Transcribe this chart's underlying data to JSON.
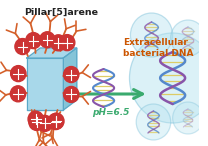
{
  "bg_color": "#ffffff",
  "pillar_color": "#a8d8ea",
  "pillar_color2": "#85c4d8",
  "pillar_edge_color": "#5aa8c8",
  "arm_color": "#d4602a",
  "node_color": "#cc3333",
  "dna_color1": "#5588cc",
  "dna_color2": "#8855aa",
  "dna_backbone_color": "#ddcc66",
  "arrow_color": "#3aaa6e",
  "bubble_fill": "#b8e4f0",
  "bubble_edge": "#7bbfd8",
  "text_pillar": "Pillar[5]arene",
  "text_extra": "Extracellular\nbacterial DNA",
  "text_ph": "pH=6.5",
  "fig_width": 2.08,
  "fig_height": 1.46
}
